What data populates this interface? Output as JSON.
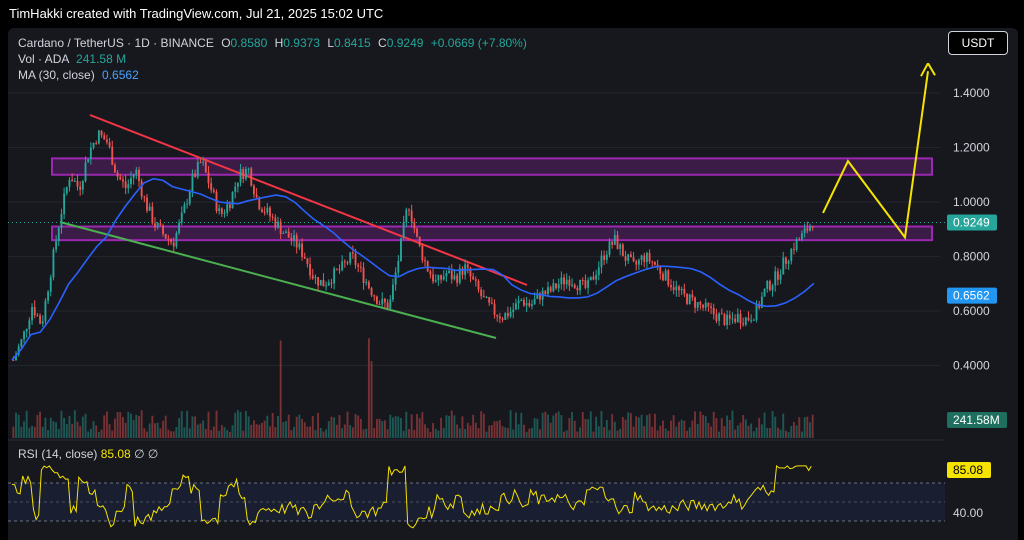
{
  "header": {
    "credit": "TimHakki created with TradingView.com, Jul 21, 2025 15:02 UTC"
  },
  "legend": {
    "symbol": "Cardano / TetherUS · 1D · BINANCE",
    "o_label": "O",
    "o": "0.8580",
    "h_label": "H",
    "h": "0.9373",
    "l_label": "L",
    "l": "0.8415",
    "c_label": "C",
    "c": "0.9249",
    "change": "+0.0669 (+7.80%)",
    "vol_label": "Vol · ADA",
    "vol": "241.58 M",
    "ma_label": "MA (30, close)",
    "ma": "0.6562"
  },
  "currency_button": "USDT",
  "price_axis": {
    "ticks": [
      "1.4000",
      "1.2000",
      "1.0000",
      "0.8000",
      "0.6000",
      "0.4000"
    ],
    "last_price": "0.9249",
    "ma_value": "0.6562",
    "volume_value": "241.58M"
  },
  "rsi": {
    "label": "RSI (14, close)",
    "value": "85.08",
    "extra": "∅ ∅",
    "tick": "40.00"
  },
  "colors": {
    "up": "#26a69a",
    "down": "#ef5350",
    "ma": "#2962ff",
    "zone": "#9c27b0",
    "resistance": "#f23645",
    "support": "#4caf50",
    "projection": "#f5e300",
    "rsi": "#f5e300"
  },
  "chart_data": {
    "type": "candlestick",
    "symbol": "ADA/USDT",
    "timeframe": "1D",
    "ylim": [
      0.3,
      1.55
    ],
    "last_close": 0.9249,
    "ma30": 0.6562,
    "close_series": [
      0.42,
      0.5,
      0.62,
      0.55,
      0.75,
      0.95,
      1.1,
      1.05,
      1.18,
      1.25,
      1.22,
      1.1,
      1.05,
      1.12,
      1.0,
      0.92,
      0.88,
      0.85,
      0.95,
      1.08,
      1.15,
      1.05,
      0.95,
      1.0,
      1.1,
      1.12,
      1.0,
      0.96,
      0.92,
      0.88,
      0.85,
      0.8,
      0.72,
      0.7,
      0.73,
      0.76,
      0.8,
      0.74,
      0.68,
      0.63,
      0.62,
      0.8,
      1.0,
      0.85,
      0.76,
      0.7,
      0.74,
      0.72,
      0.76,
      0.7,
      0.64,
      0.6,
      0.58,
      0.6,
      0.64,
      0.62,
      0.66,
      0.67,
      0.7,
      0.72,
      0.7,
      0.68,
      0.75,
      0.82,
      0.86,
      0.8,
      0.76,
      0.8,
      0.78,
      0.74,
      0.7,
      0.66,
      0.64,
      0.62,
      0.6,
      0.58,
      0.56,
      0.58,
      0.57,
      0.6,
      0.68,
      0.72,
      0.78,
      0.84,
      0.88,
      0.93
    ],
    "zones": [
      {
        "low": 1.1,
        "high": 1.16
      },
      {
        "low": 0.86,
        "high": 0.91
      }
    ],
    "projection_path": [
      0.96,
      1.15,
      0.87,
      1.48
    ]
  }
}
